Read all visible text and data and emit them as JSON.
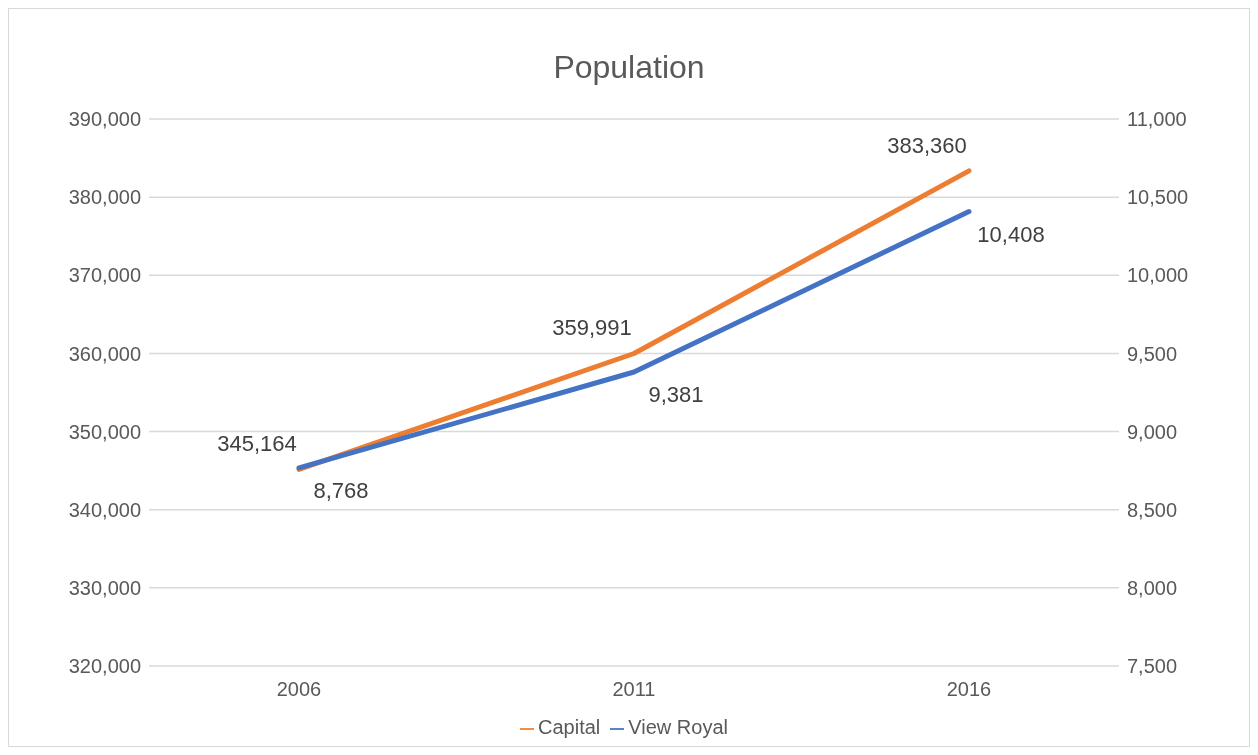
{
  "chart_data": {
    "type": "line",
    "title": "Population",
    "categories": [
      "2006",
      "2011",
      "2016"
    ],
    "series": [
      {
        "name": "Capital",
        "color": "#ed7d31",
        "values": [
          345164,
          359991,
          383360
        ],
        "value_labels": [
          "345,164",
          "359,991",
          "383,360"
        ]
      },
      {
        "name": "View Royal",
        "color": "#4472c4",
        "values": [
          8768,
          9381,
          10408
        ],
        "value_labels": [
          "8,768",
          "9,381",
          "10,408"
        ],
        "axis": "y2"
      }
    ],
    "ylim": [
      320000,
      390000
    ],
    "yticks": [
      {
        "value": 320000,
        "label": "320,000"
      },
      {
        "value": 330000,
        "label": "330,000"
      },
      {
        "value": 340000,
        "label": "340,000"
      },
      {
        "value": 350000,
        "label": "350,000"
      },
      {
        "value": 360000,
        "label": "360,000"
      },
      {
        "value": 370000,
        "label": "370,000"
      },
      {
        "value": 380000,
        "label": "380,000"
      },
      {
        "value": 390000,
        "label": "390,000"
      }
    ],
    "y2lim": [
      7500,
      11000
    ],
    "y2ticks": [
      {
        "value": 7500,
        "label": "7,500"
      },
      {
        "value": 8000,
        "label": "8,000"
      },
      {
        "value": 8500,
        "label": "8,500"
      },
      {
        "value": 9000,
        "label": "9,000"
      },
      {
        "value": 9500,
        "label": "9,500"
      },
      {
        "value": 10000,
        "label": "10,000"
      },
      {
        "value": 10500,
        "label": "10,500"
      },
      {
        "value": 11000,
        "label": "11,000"
      }
    ],
    "grid": "y",
    "legend": "bottom",
    "marker": "none",
    "line_style": "solid"
  }
}
